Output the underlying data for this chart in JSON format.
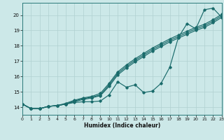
{
  "xlabel": "Humidex (Indice chaleur)",
  "bg_color": "#cce8e8",
  "grid_color": "#b0d0d0",
  "line_color": "#1a6b6b",
  "xlim": [
    0,
    23
  ],
  "ylim": [
    13.5,
    20.8
  ],
  "xticks": [
    0,
    1,
    2,
    3,
    4,
    5,
    6,
    7,
    8,
    9,
    10,
    11,
    12,
    13,
    14,
    15,
    16,
    17,
    18,
    19,
    20,
    21,
    22,
    23
  ],
  "yticks": [
    14,
    15,
    16,
    17,
    18,
    19,
    20
  ],
  "series_zigzag": [
    14.2,
    13.9,
    13.9,
    14.05,
    14.1,
    14.2,
    14.3,
    14.35,
    14.35,
    14.4,
    14.8,
    15.65,
    15.3,
    15.45,
    14.95,
    15.05,
    15.55,
    16.6,
    18.55,
    19.45,
    19.1,
    20.35,
    20.45,
    19.85
  ],
  "series_low": [
    14.2,
    13.9,
    13.9,
    14.05,
    14.1,
    14.2,
    14.35,
    14.5,
    14.6,
    14.75,
    15.35,
    16.1,
    16.55,
    16.95,
    17.3,
    17.65,
    17.95,
    18.25,
    18.5,
    18.75,
    19.0,
    19.2,
    19.5,
    19.85
  ],
  "series_mid": [
    14.2,
    13.9,
    13.9,
    14.05,
    14.1,
    14.2,
    14.4,
    14.55,
    14.65,
    14.8,
    15.45,
    16.2,
    16.65,
    17.05,
    17.4,
    17.75,
    18.05,
    18.35,
    18.6,
    18.85,
    19.1,
    19.3,
    19.6,
    19.95
  ],
  "series_high": [
    14.2,
    13.9,
    13.9,
    14.05,
    14.1,
    14.25,
    14.45,
    14.6,
    14.7,
    14.9,
    15.55,
    16.3,
    16.75,
    17.15,
    17.5,
    17.85,
    18.15,
    18.45,
    18.7,
    18.95,
    19.2,
    19.4,
    19.7,
    20.05
  ]
}
